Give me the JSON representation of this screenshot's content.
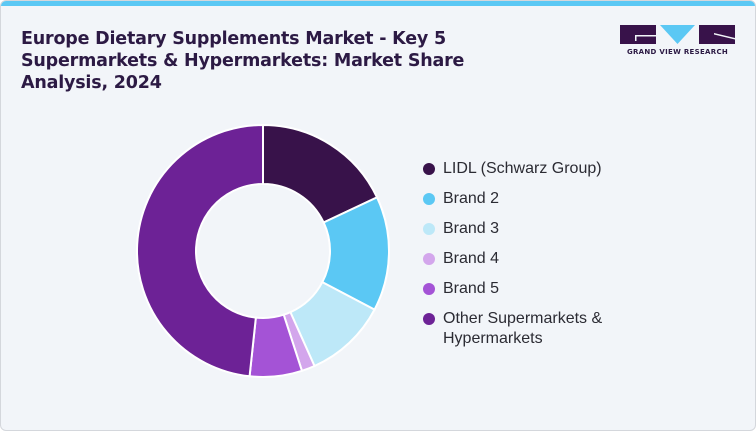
{
  "header": {
    "title": "Europe Dietary Supplements Market - Key 5 Supermarkets & Hypermarkets: Market Share Analysis, 2024",
    "logo_text": "GRAND VIEW RESEARCH",
    "accent_color": "#5bc8f4"
  },
  "legend": {
    "items": [
      {
        "label": "LIDL (Schwarz Group)",
        "color": "#38124a"
      },
      {
        "label": "Brand 2",
        "color": "#5bc8f4"
      },
      {
        "label": "Brand 3",
        "color": "#bde8f8"
      },
      {
        "label": "Brand 4",
        "color": "#d3a6ec"
      },
      {
        "label": "Brand 5",
        "color": "#a453d6"
      },
      {
        "label": "Other Supermarkets & Hypermarkets",
        "color": "#6d2296"
      }
    ]
  },
  "chart_data": {
    "type": "pie",
    "subtype": "donut",
    "title": "Europe Dietary Supplements Market - Key 5 Supermarkets & Hypermarkets: Market Share Analysis, 2024",
    "categories": [
      "LIDL (Schwarz Group)",
      "Brand 2",
      "Brand 3",
      "Brand 4",
      "Brand 5",
      "Other Supermarkets & Hypermarkets"
    ],
    "values": [
      18.0,
      14.7,
      10.6,
      1.7,
      6.7,
      48.3
    ],
    "unit": "%",
    "colors": [
      "#38124a",
      "#5bc8f4",
      "#bde8f8",
      "#d3a6ec",
      "#a453d6",
      "#6d2296"
    ],
    "legend_position": "right",
    "start_angle": "top, clockwise"
  }
}
